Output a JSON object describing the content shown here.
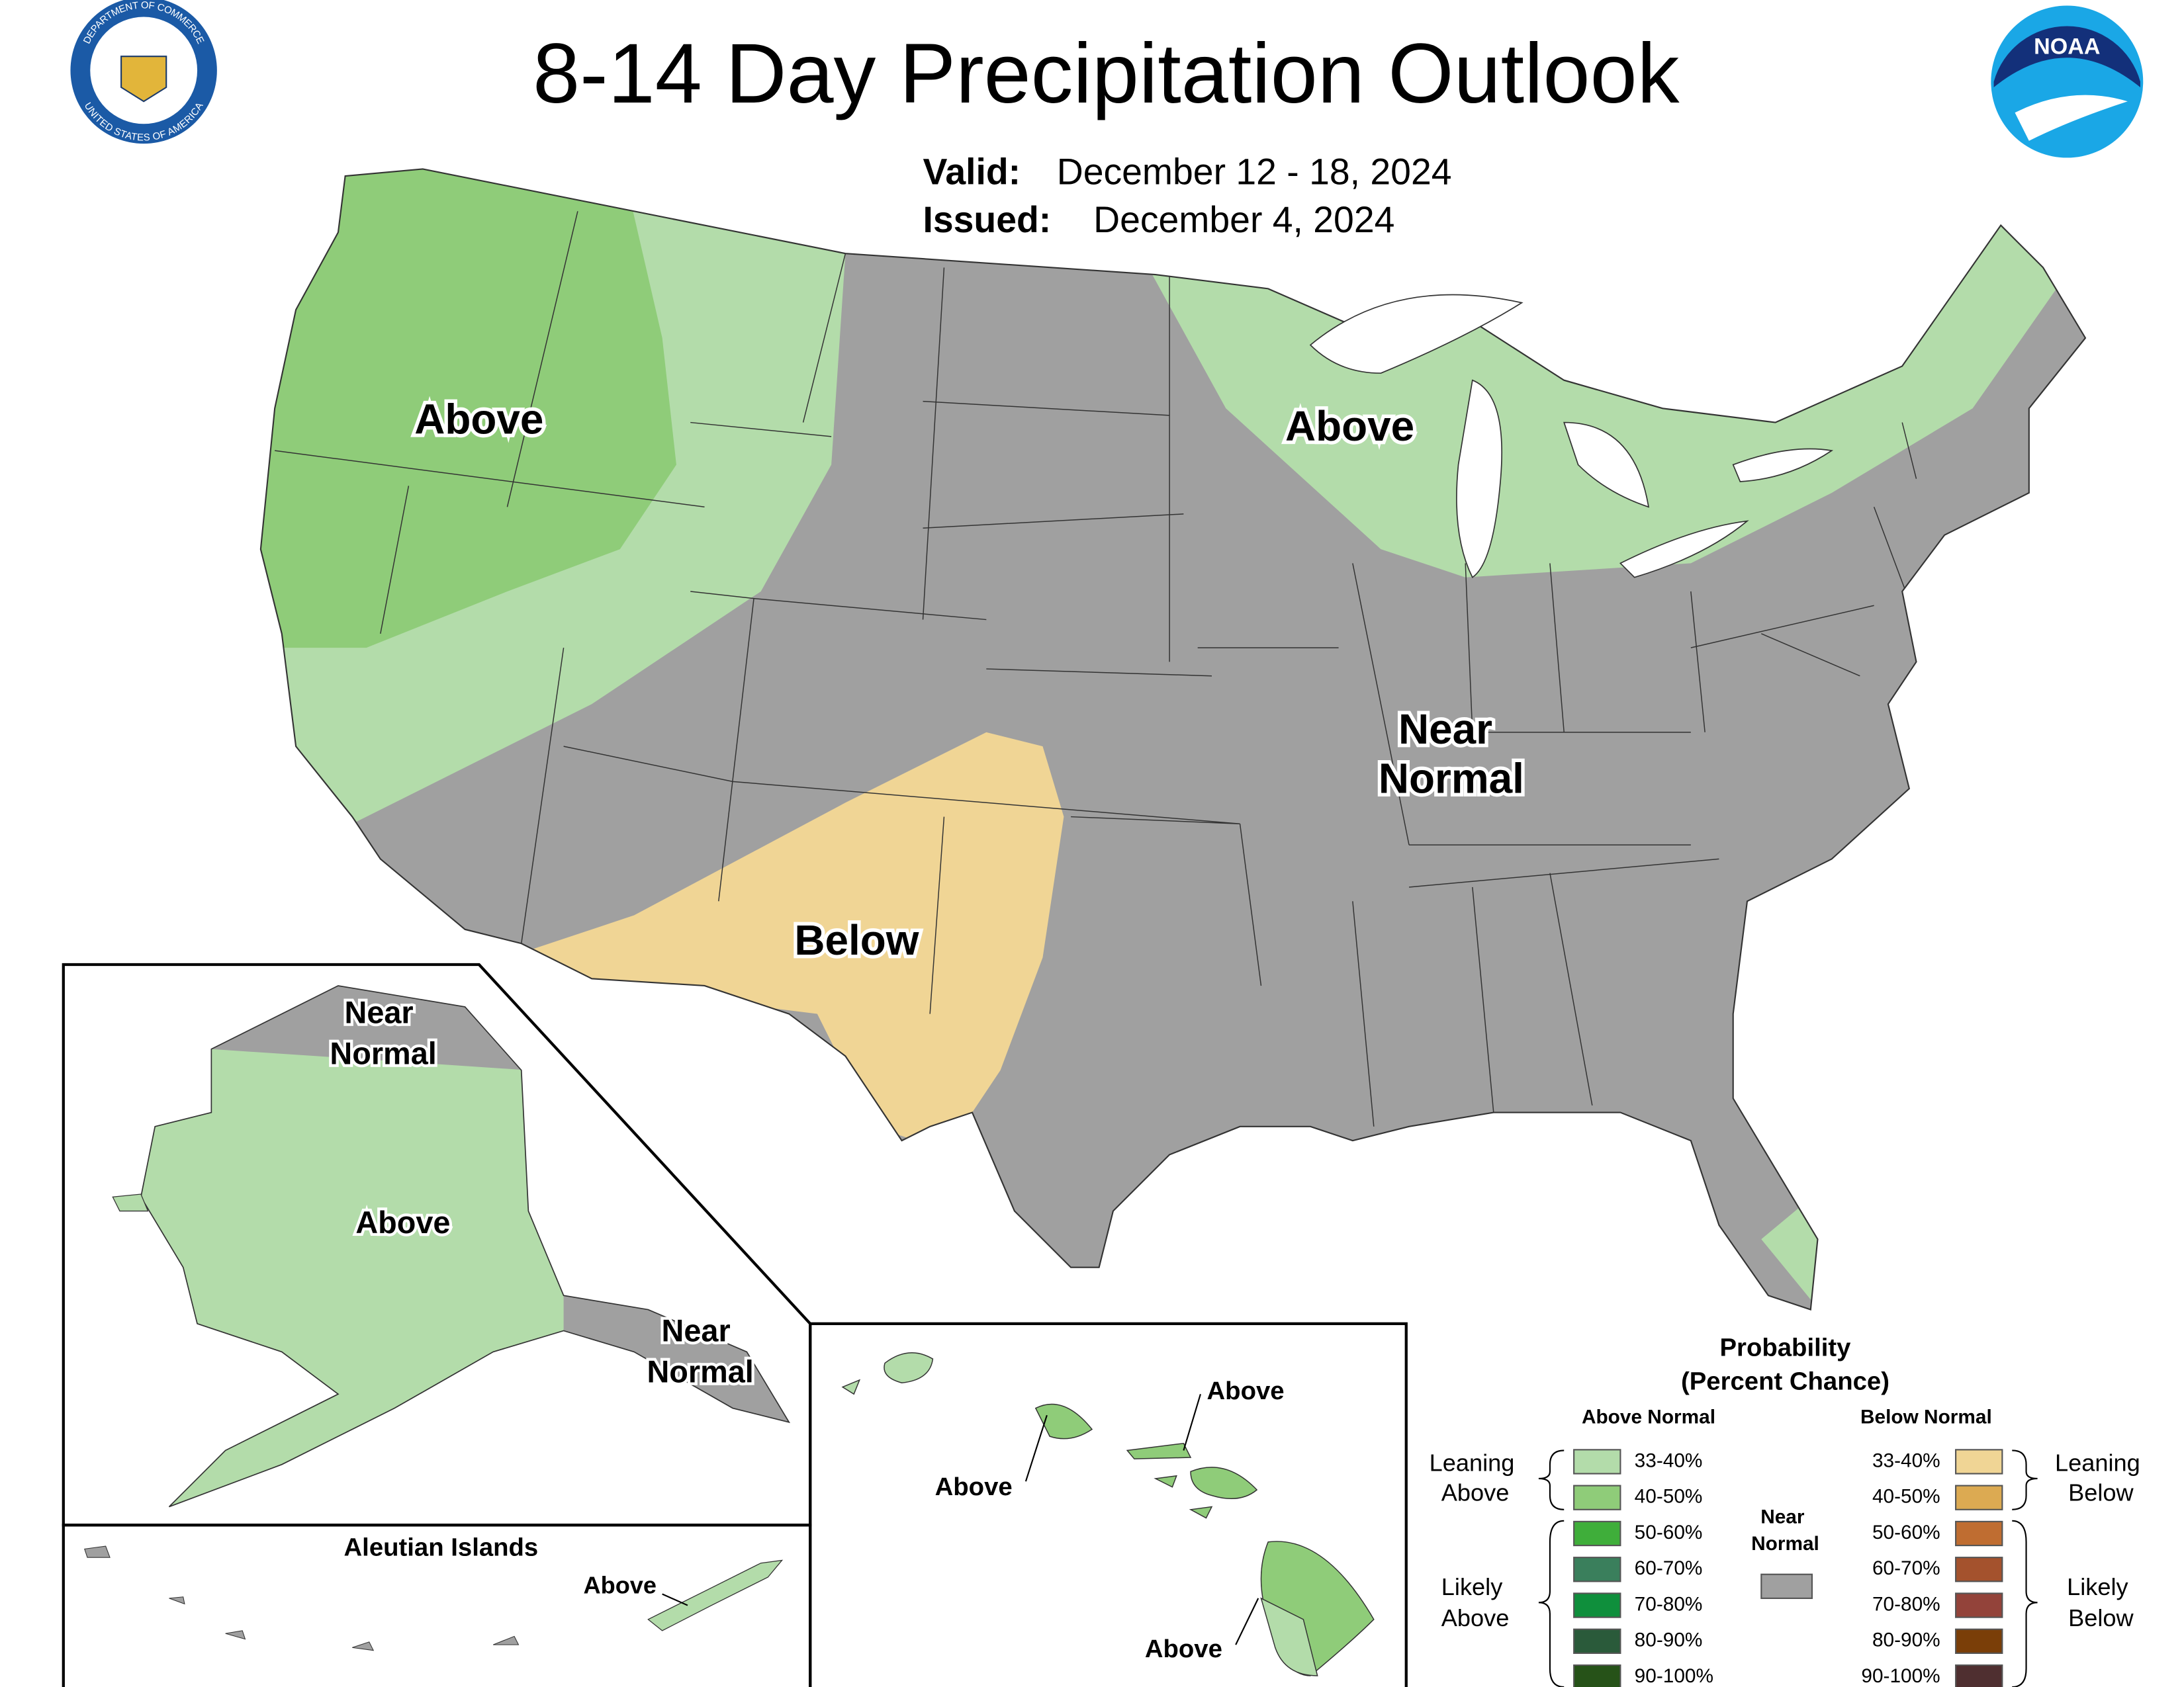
{
  "header": {
    "title": "8-14 Day Precipitation Outlook",
    "valid_label": "Valid:",
    "valid": "December 12 - 18, 2024",
    "issued_label": "Issued:",
    "issued": "December 4, 2024"
  },
  "logos": {
    "seal_top": "DEPARTMENT OF COMMERCE",
    "seal_bottom": "UNITED STATES OF AMERICA",
    "noaa": "NOAA"
  },
  "map_labels": {
    "conus_northwest": "Above",
    "conus_great_lakes": "Above",
    "conus_near_normal": [
      "Near",
      "Normal"
    ],
    "conus_southwest": "Below",
    "alaska_north": [
      "Near",
      "Normal"
    ],
    "alaska_main": "Above",
    "alaska_southeast": [
      "Near",
      "Normal"
    ],
    "aleutian_title": "Aleutian Islands",
    "aleutian": "Above",
    "hawaii_oahu": "Above",
    "hawaii_maui": "Above",
    "hawaii_big_island": "Above"
  },
  "legend": {
    "title": "Probability",
    "subtitle": "(Percent Chance)",
    "above_header": "Above Normal",
    "below_header": "Below Normal",
    "near_normal": [
      "Near",
      "Normal"
    ],
    "near_normal_color": "#a0a0a0",
    "leaning_above": [
      "Leaning",
      "Above"
    ],
    "likely_above": [
      "Likely",
      "Above"
    ],
    "leaning_below": [
      "Leaning",
      "Below"
    ],
    "likely_below": [
      "Likely",
      "Below"
    ],
    "above": [
      {
        "range": "33-40%",
        "color": "#b3dcaa"
      },
      {
        "range": "40-50%",
        "color": "#8fcc79"
      },
      {
        "range": "50-60%",
        "color": "#3fae3a"
      },
      {
        "range": "60-70%",
        "color": "#3a7f5c"
      },
      {
        "range": "70-80%",
        "color": "#0f8f3c"
      },
      {
        "range": "80-90%",
        "color": "#2a5a3a"
      },
      {
        "range": "90-100%",
        "color": "#265218"
      }
    ],
    "below": [
      {
        "range": "33-40%",
        "color": "#f0d595"
      },
      {
        "range": "40-50%",
        "color": "#dcaa52"
      },
      {
        "range": "50-60%",
        "color": "#bf6d31"
      },
      {
        "range": "60-70%",
        "color": "#a4522d"
      },
      {
        "range": "70-80%",
        "color": "#93433a"
      },
      {
        "range": "80-90%",
        "color": "#7a3e08"
      },
      {
        "range": "90-100%",
        "color": "#4f2f30"
      }
    ]
  }
}
